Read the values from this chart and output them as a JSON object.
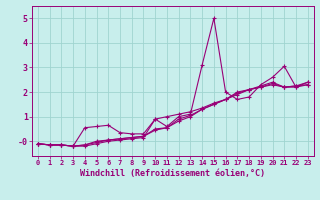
{
  "xlabel": "Windchill (Refroidissement éolien,°C)",
  "xlim": [
    -0.5,
    23.5
  ],
  "ylim": [
    -0.6,
    5.5
  ],
  "ytick_labels": [
    "-0",
    "1",
    "2",
    "3",
    "4",
    "5"
  ],
  "ytick_vals": [
    0,
    1,
    2,
    3,
    4,
    5
  ],
  "xticks": [
    0,
    1,
    2,
    3,
    4,
    5,
    6,
    7,
    8,
    9,
    10,
    11,
    12,
    13,
    14,
    15,
    16,
    17,
    18,
    19,
    20,
    21,
    22,
    23
  ],
  "bg_color": "#c8eeec",
  "grid_color": "#a0d4d0",
  "line_color": "#990077",
  "lines": [
    [
      -0.1,
      -0.15,
      -0.15,
      -0.2,
      -0.2,
      -0.1,
      0.0,
      0.05,
      0.1,
      0.15,
      0.9,
      0.6,
      1.0,
      1.1,
      3.1,
      5.0,
      2.0,
      1.7,
      1.8,
      2.3,
      2.6,
      3.05,
      2.2,
      2.4
    ],
    [
      -0.1,
      -0.15,
      -0.15,
      -0.2,
      0.55,
      0.6,
      0.65,
      0.35,
      0.3,
      0.3,
      0.9,
      1.0,
      1.1,
      1.2,
      1.35,
      1.55,
      1.7,
      1.9,
      2.1,
      2.25,
      2.4,
      2.2,
      2.25,
      2.4
    ],
    [
      -0.1,
      -0.15,
      -0.15,
      -0.2,
      -0.15,
      -0.05,
      0.05,
      0.1,
      0.15,
      0.2,
      0.5,
      0.55,
      0.82,
      1.0,
      1.3,
      1.5,
      1.7,
      1.95,
      2.1,
      2.2,
      2.35,
      2.2,
      2.25,
      2.3
    ],
    [
      -0.1,
      -0.15,
      -0.15,
      -0.2,
      -0.15,
      0.0,
      0.05,
      0.1,
      0.15,
      0.2,
      0.45,
      0.55,
      0.9,
      1.05,
      1.3,
      1.5,
      1.7,
      2.0,
      2.1,
      2.2,
      2.3,
      2.2,
      2.2,
      2.3
    ]
  ]
}
